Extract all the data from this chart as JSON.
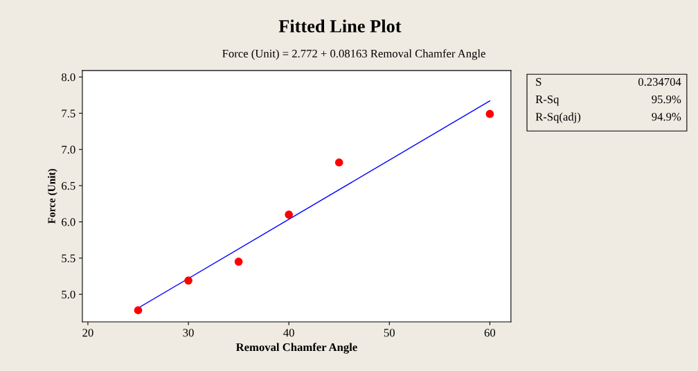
{
  "chart_data": {
    "type": "scatter",
    "title": "Fitted Line Plot",
    "subtitle": "Force (Unit) = 2.772 + 0.08163 Removal Chamfer Angle",
    "xlabel": "Removal Chamfer Angle",
    "ylabel": "Force (Unit)",
    "x": [
      25,
      30,
      35,
      40,
      45,
      60
    ],
    "series": [
      {
        "color": "#ff0000",
        "marker": "circle",
        "values": [
          4.78,
          5.19,
          5.45,
          6.1,
          6.82,
          7.49
        ]
      },
      {
        "type": "line",
        "color": "#0000ff",
        "x": [
          25,
          60
        ],
        "values": [
          4.81,
          7.67
        ]
      }
    ],
    "xlim": [
      19.45,
      62.1
    ],
    "ylim": [
      4.62,
      8.09
    ],
    "xticks": [
      20,
      30,
      40,
      50,
      60
    ],
    "yticks": [
      {
        "value": 5,
        "label": "5.0"
      },
      5.5,
      {
        "value": 6,
        "label": "6.0"
      },
      6.5,
      {
        "value": 7,
        "label": "7.0"
      },
      7.5,
      {
        "value": 8,
        "label": "8.0"
      }
    ],
    "annotations": [
      "S",
      "0.234704",
      "R-Sq",
      "95.9%",
      "R-Sq(adj)",
      "94.9%"
    ],
    "grid": false,
    "legend": false
  }
}
